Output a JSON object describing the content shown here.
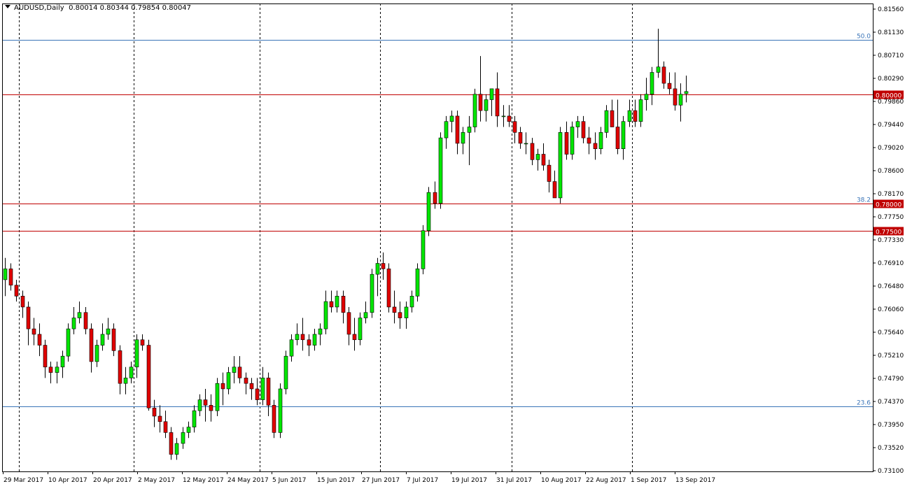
{
  "header": {
    "symbol": "AUDUSD,Daily",
    "ohlc": "0.80014 0.80344 0.79854 0.80047"
  },
  "colors": {
    "bull": "#00e600",
    "bear": "#e00000",
    "outline": "#000000",
    "fib": "#3a74b8",
    "level": "#c00000",
    "axis": "#000000"
  },
  "chart_data": {
    "type": "candlestick",
    "ylim": [
      0.731,
      0.8156
    ],
    "y_ticks": [
      "0.81560",
      "0.81130",
      "0.80710",
      "0.80290",
      "0.79860",
      "0.79440",
      "0.79020",
      "0.78600",
      "0.78170",
      "0.77750",
      "0.77330",
      "0.76910",
      "0.76480",
      "0.76060",
      "0.75640",
      "0.75210",
      "0.74790",
      "0.74370",
      "0.73950",
      "0.73520",
      "0.73100"
    ],
    "x_labels": [
      "29 Mar 2017",
      "10 Apr 2017",
      "20 Apr 2017",
      "2 May 2017",
      "12 May 2017",
      "24 May 2017",
      "5 Jun 2017",
      "15 Jun 2017",
      "27 Jun 2017",
      "7 Jul 2017",
      "19 Jul 2017",
      "31 Jul 2017",
      "10 Aug 2017",
      "22 Aug 2017",
      "1 Sep 2017",
      "13 Sep 2017"
    ],
    "horizontal_lines": [
      {
        "label": "50.0",
        "value": 0.81,
        "type": "fib"
      },
      {
        "label": "0.80000",
        "value": 0.8,
        "type": "level"
      },
      {
        "label": "38.2",
        "value": 0.78,
        "type": "fib"
      },
      {
        "label": "0.78000",
        "value": 0.78,
        "type": "level"
      },
      {
        "label": "0.77500",
        "value": 0.775,
        "type": "level"
      },
      {
        "label": "23.6",
        "value": 0.7428,
        "type": "fib"
      }
    ],
    "ohlc": [
      [
        0.766,
        0.77,
        0.763,
        0.768
      ],
      [
        0.768,
        0.769,
        0.764,
        0.765
      ],
      [
        0.765,
        0.766,
        0.762,
        0.763
      ],
      [
        0.763,
        0.764,
        0.759,
        0.761
      ],
      [
        0.761,
        0.762,
        0.754,
        0.757
      ],
      [
        0.757,
        0.759,
        0.754,
        0.756
      ],
      [
        0.756,
        0.758,
        0.752,
        0.754
      ],
      [
        0.754,
        0.755,
        0.748,
        0.75
      ],
      [
        0.75,
        0.751,
        0.747,
        0.749
      ],
      [
        0.749,
        0.751,
        0.747,
        0.75
      ],
      [
        0.75,
        0.753,
        0.748,
        0.752
      ],
      [
        0.752,
        0.758,
        0.751,
        0.757
      ],
      [
        0.757,
        0.761,
        0.756,
        0.759
      ],
      [
        0.759,
        0.762,
        0.758,
        0.76
      ],
      [
        0.76,
        0.761,
        0.756,
        0.757
      ],
      [
        0.757,
        0.758,
        0.749,
        0.751
      ],
      [
        0.751,
        0.755,
        0.75,
        0.754
      ],
      [
        0.754,
        0.758,
        0.753,
        0.756
      ],
      [
        0.756,
        0.759,
        0.755,
        0.757
      ],
      [
        0.757,
        0.758,
        0.752,
        0.753
      ],
      [
        0.753,
        0.754,
        0.745,
        0.747
      ],
      [
        0.747,
        0.75,
        0.745,
        0.748
      ],
      [
        0.748,
        0.751,
        0.747,
        0.75
      ],
      [
        0.75,
        0.756,
        0.748,
        0.755
      ],
      [
        0.755,
        0.756,
        0.753,
        0.754
      ],
      [
        0.754,
        0.755,
        0.742,
        0.7425
      ],
      [
        0.7425,
        0.744,
        0.739,
        0.741
      ],
      [
        0.741,
        0.743,
        0.738,
        0.74
      ],
      [
        0.74,
        0.742,
        0.737,
        0.738
      ],
      [
        0.738,
        0.739,
        0.733,
        0.734
      ],
      [
        0.734,
        0.737,
        0.733,
        0.736
      ],
      [
        0.736,
        0.739,
        0.735,
        0.738
      ],
      [
        0.738,
        0.74,
        0.737,
        0.739
      ],
      [
        0.739,
        0.743,
        0.738,
        0.742
      ],
      [
        0.742,
        0.745,
        0.741,
        0.744
      ],
      [
        0.744,
        0.746,
        0.74,
        0.743
      ],
      [
        0.743,
        0.745,
        0.74,
        0.742
      ],
      [
        0.742,
        0.748,
        0.741,
        0.747
      ],
      [
        0.747,
        0.749,
        0.743,
        0.746
      ],
      [
        0.746,
        0.75,
        0.745,
        0.749
      ],
      [
        0.749,
        0.752,
        0.747,
        0.75
      ],
      [
        0.75,
        0.752,
        0.747,
        0.748
      ],
      [
        0.748,
        0.749,
        0.745,
        0.747
      ],
      [
        0.747,
        0.748,
        0.744,
        0.746
      ],
      [
        0.746,
        0.748,
        0.743,
        0.744
      ],
      [
        0.744,
        0.75,
        0.743,
        0.748
      ],
      [
        0.748,
        0.749,
        0.741,
        0.743
      ],
      [
        0.743,
        0.744,
        0.737,
        0.738
      ],
      [
        0.738,
        0.747,
        0.737,
        0.746
      ],
      [
        0.746,
        0.753,
        0.745,
        0.752
      ],
      [
        0.752,
        0.756,
        0.751,
        0.755
      ],
      [
        0.755,
        0.758,
        0.754,
        0.756
      ],
      [
        0.756,
        0.759,
        0.753,
        0.755
      ],
      [
        0.755,
        0.756,
        0.752,
        0.754
      ],
      [
        0.754,
        0.757,
        0.753,
        0.756
      ],
      [
        0.756,
        0.758,
        0.754,
        0.757
      ],
      [
        0.757,
        0.764,
        0.756,
        0.762
      ],
      [
        0.762,
        0.764,
        0.76,
        0.761
      ],
      [
        0.761,
        0.764,
        0.76,
        0.763
      ],
      [
        0.763,
        0.764,
        0.758,
        0.76
      ],
      [
        0.76,
        0.761,
        0.754,
        0.756
      ],
      [
        0.756,
        0.759,
        0.753,
        0.755
      ],
      [
        0.755,
        0.76,
        0.754,
        0.759
      ],
      [
        0.759,
        0.762,
        0.758,
        0.76
      ],
      [
        0.76,
        0.768,
        0.759,
        0.767
      ],
      [
        0.767,
        0.77,
        0.763,
        0.769
      ],
      [
        0.769,
        0.771,
        0.766,
        0.768
      ],
      [
        0.768,
        0.769,
        0.76,
        0.761
      ],
      [
        0.761,
        0.764,
        0.758,
        0.76
      ],
      [
        0.76,
        0.762,
        0.757,
        0.759
      ],
      [
        0.759,
        0.762,
        0.757,
        0.761
      ],
      [
        0.761,
        0.764,
        0.76,
        0.763
      ],
      [
        0.763,
        0.769,
        0.762,
        0.768
      ],
      [
        0.768,
        0.776,
        0.767,
        0.775
      ],
      [
        0.775,
        0.783,
        0.774,
        0.782
      ],
      [
        0.782,
        0.784,
        0.779,
        0.78
      ],
      [
        0.78,
        0.793,
        0.779,
        0.792
      ],
      [
        0.792,
        0.796,
        0.79,
        0.795
      ],
      [
        0.795,
        0.797,
        0.793,
        0.796
      ],
      [
        0.796,
        0.797,
        0.789,
        0.791
      ],
      [
        0.791,
        0.794,
        0.789,
        0.793
      ],
      [
        0.793,
        0.796,
        0.787,
        0.794
      ],
      [
        0.794,
        0.801,
        0.793,
        0.8
      ],
      [
        0.8,
        0.807,
        0.795,
        0.797
      ],
      [
        0.797,
        0.8,
        0.795,
        0.799
      ],
      [
        0.799,
        0.801,
        0.796,
        0.801
      ],
      [
        0.801,
        0.804,
        0.794,
        0.796
      ],
      [
        0.796,
        0.798,
        0.794,
        0.796
      ],
      [
        0.796,
        0.798,
        0.794,
        0.795
      ],
      [
        0.795,
        0.796,
        0.791,
        0.793
      ],
      [
        0.793,
        0.794,
        0.79,
        0.791
      ],
      [
        0.791,
        0.793,
        0.789,
        0.791
      ],
      [
        0.791,
        0.792,
        0.787,
        0.788
      ],
      [
        0.788,
        0.79,
        0.786,
        0.789
      ],
      [
        0.789,
        0.791,
        0.786,
        0.787
      ],
      [
        0.787,
        0.788,
        0.782,
        0.784
      ],
      [
        0.784,
        0.786,
        0.781,
        0.781
      ],
      [
        0.781,
        0.794,
        0.78,
        0.793
      ],
      [
        0.793,
        0.795,
        0.788,
        0.789
      ],
      [
        0.789,
        0.795,
        0.788,
        0.794
      ],
      [
        0.794,
        0.796,
        0.792,
        0.795
      ],
      [
        0.795,
        0.796,
        0.791,
        0.792
      ],
      [
        0.792,
        0.794,
        0.789,
        0.791
      ],
      [
        0.791,
        0.793,
        0.788,
        0.79
      ],
      [
        0.79,
        0.794,
        0.789,
        0.793
      ],
      [
        0.793,
        0.798,
        0.792,
        0.797
      ],
      [
        0.797,
        0.799,
        0.794,
        0.794
      ],
      [
        0.794,
        0.799,
        0.789,
        0.79
      ],
      [
        0.79,
        0.796,
        0.788,
        0.795
      ],
      [
        0.795,
        0.799,
        0.794,
        0.797
      ],
      [
        0.797,
        0.799,
        0.794,
        0.795
      ],
      [
        0.795,
        0.8,
        0.794,
        0.799
      ],
      [
        0.799,
        0.803,
        0.797,
        0.8
      ],
      [
        0.8,
        0.805,
        0.798,
        0.804
      ],
      [
        0.804,
        0.812,
        0.803,
        0.805
      ],
      [
        0.805,
        0.806,
        0.801,
        0.802
      ],
      [
        0.802,
        0.804,
        0.8,
        0.801
      ],
      [
        0.801,
        0.804,
        0.797,
        0.798
      ],
      [
        0.798,
        0.802,
        0.795,
        0.8
      ],
      [
        0.8001,
        0.8034,
        0.7985,
        0.8005
      ]
    ]
  }
}
